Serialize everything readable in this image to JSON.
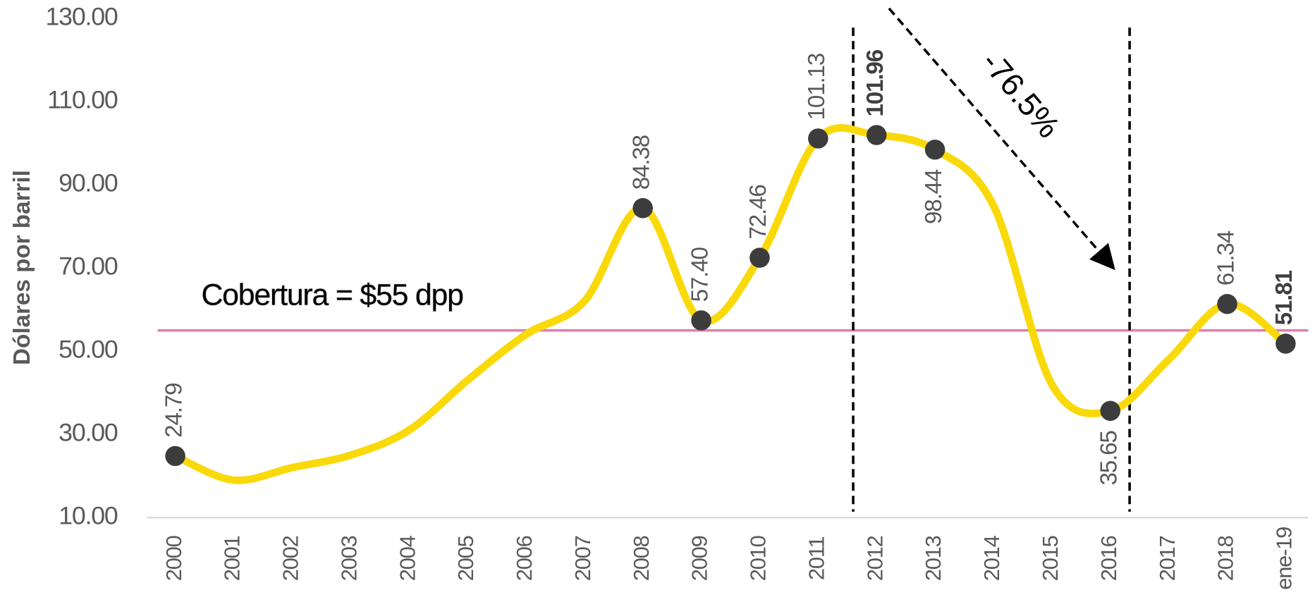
{
  "chart_data": {
    "type": "line",
    "y_label": "Dólares por barril",
    "categories": [
      "2000",
      "2001",
      "2002",
      "2003",
      "2004",
      "2005",
      "2006",
      "2007",
      "2008",
      "2009",
      "2010",
      "2011",
      "2012",
      "2013",
      "2014",
      "2015",
      "2016",
      "2017",
      "2018",
      "ene-19"
    ],
    "series": [
      {
        "color": "#f9d90a",
        "marker_color": "#3c3c3c",
        "values": [
          24.79,
          19,
          22,
          25,
          31,
          43,
          54,
          62,
          84.38,
          57.4,
          72.46,
          101.13,
          101.96,
          98.44,
          85,
          42,
          35.65,
          48,
          61.34,
          51.81
        ],
        "value_labels": [
          "24.79",
          null,
          null,
          null,
          null,
          null,
          null,
          null,
          "84.38",
          "57.40",
          "72.46",
          "101.13",
          "101.96",
          "98.44",
          null,
          null,
          "35.65",
          null,
          "61.34",
          "51.81"
        ]
      }
    ],
    "reference_line": {
      "value": 55,
      "label": "Cobertura = $55 dpp",
      "color": "#e07fb0"
    },
    "annotation": "-76.5%",
    "ylim": [
      10,
      130
    ],
    "yticks": [
      {
        "value": 10,
        "label": "10.00"
      },
      {
        "value": 30,
        "label": "30.00"
      },
      {
        "value": 50,
        "label": "50.00"
      },
      {
        "value": 70,
        "label": "70.00"
      },
      {
        "value": 90,
        "label": "90.00"
      },
      {
        "value": 110,
        "label": "110.00"
      },
      {
        "value": 130,
        "label": "130.00"
      }
    ]
  }
}
